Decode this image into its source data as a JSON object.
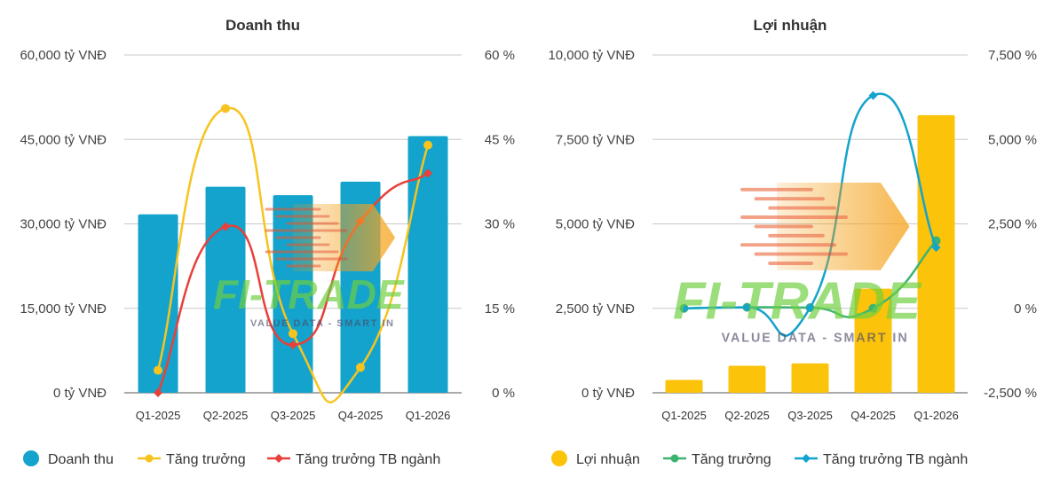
{
  "chart_data": [
    {
      "type": "bar",
      "title": "Doanh thu",
      "categories": [
        "Q1-2025",
        "Q2-2025",
        "Q3-2025",
        "Q4-2025",
        "Q1-2026"
      ],
      "left_axis": {
        "ylim": [
          0,
          60000
        ],
        "ticks": [
          0,
          15000,
          30000,
          45000,
          60000
        ],
        "tick_labels": [
          "0 tỷ VNĐ",
          "15,000 tỷ VNĐ",
          "30,000 tỷ VNĐ",
          "45,000 tỷ VNĐ",
          "60,000 tỷ VNĐ"
        ]
      },
      "right_axis": {
        "ylim": [
          0,
          60
        ],
        "ticks": [
          0,
          15,
          30,
          45,
          60
        ],
        "tick_labels": [
          "0 %",
          "15 %",
          "30 %",
          "45 %",
          "60 %"
        ]
      },
      "grid": true,
      "legend_position": "bottom",
      "series": [
        {
          "name": "Doanh thu",
          "kind": "bar",
          "axis": "left",
          "color": "#14a3cc",
          "values": [
            31700,
            36600,
            35100,
            37500,
            45600
          ]
        },
        {
          "name": "Tăng trưởng",
          "kind": "line",
          "axis": "right",
          "color": "#f7c41f",
          "values": [
            4,
            50.5,
            10.5,
            4.5,
            44
          ]
        },
        {
          "name": "Tăng trưởng TB ngành",
          "kind": "line",
          "axis": "right",
          "color": "#e8403a",
          "values": [
            0,
            29.5,
            8.5,
            30.5,
            39
          ]
        }
      ]
    },
    {
      "type": "bar",
      "title": "Lợi nhuận",
      "categories": [
        "Q1-2025",
        "Q2-2025",
        "Q3-2025",
        "Q4-2025",
        "Q1-2026"
      ],
      "left_axis": {
        "ylim": [
          0,
          10000
        ],
        "ticks": [
          0,
          2500,
          5000,
          7500,
          10000
        ],
        "tick_labels": [
          "0 tỷ VNĐ",
          "2,500 tỷ VNĐ",
          "5,000 tỷ VNĐ",
          "7,500 tỷ VNĐ",
          "10,000 tỷ VNĐ"
        ]
      },
      "right_axis": {
        "ylim": [
          -2500,
          7500
        ],
        "ticks": [
          -2500,
          0,
          2500,
          5000,
          7500
        ],
        "tick_labels": [
          "-2,500 %",
          "0 %",
          "2,500 %",
          "5,000 %",
          "7,500 %"
        ]
      },
      "grid": true,
      "legend_position": "bottom",
      "series": [
        {
          "name": "Lợi nhuận",
          "kind": "bar",
          "axis": "left",
          "color": "#fcc30b",
          "values": [
            380,
            800,
            870,
            3080,
            8220
          ]
        },
        {
          "name": "Tăng trưởng",
          "kind": "line",
          "axis": "right",
          "color": "#3cb371",
          "values": [
            0,
            30,
            20,
            0,
            2000
          ]
        },
        {
          "name": "Tăng trưởng TB ngành",
          "kind": "line",
          "axis": "right",
          "color": "#14a3cc",
          "values": [
            0,
            30,
            20,
            6300,
            1800
          ]
        }
      ]
    }
  ],
  "watermark": {
    "brand": "FI-TRADE",
    "tagline": "VALUE DATA - SMART IN"
  }
}
